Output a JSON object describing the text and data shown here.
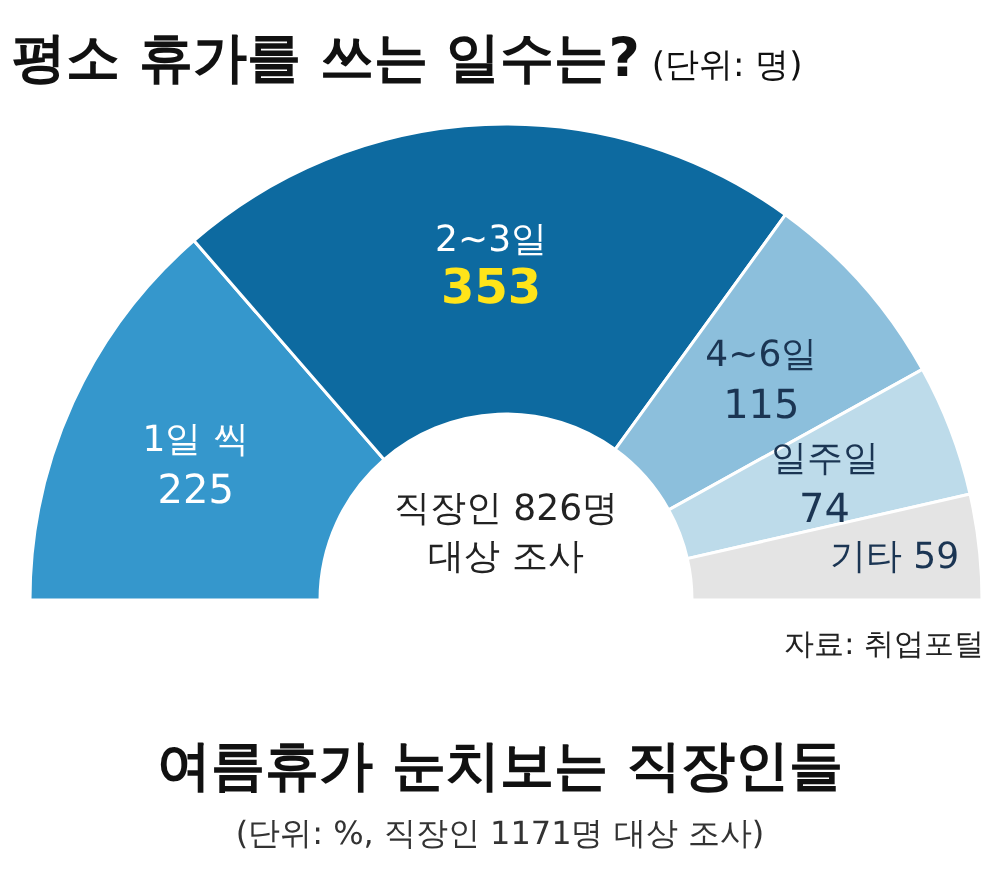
{
  "chart_data": {
    "type": "donut",
    "title": "평소 휴가를 쓰는 일수는?",
    "subtitle": "(단위: 명)",
    "categories": [
      "1일 씩",
      "2~3일",
      "4~6일",
      "일주일",
      "기타"
    ],
    "values": [
      225,
      353,
      115,
      74,
      59
    ],
    "colors": [
      "#3597cc",
      "#0d6aa0",
      "#8cbfdc",
      "#bddbea",
      "#e4e4e4"
    ],
    "data_labels": true,
    "annotations": [
      "직장인 826명 대상 조사",
      "자료: 취업포털",
      "여름휴가 눈치보는 직장인들",
      "(단위: %, 직장인 1171명 대상 조사)"
    ]
  }
}
